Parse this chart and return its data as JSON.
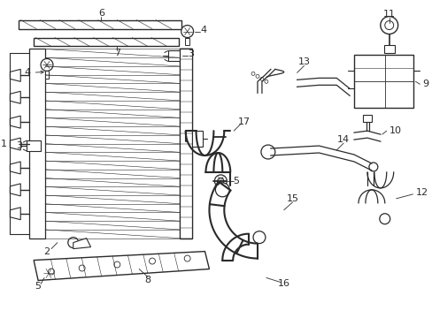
{
  "background_color": "#ffffff",
  "line_color": "#2a2a2a",
  "lw": 0.9,
  "lw_thick": 1.5,
  "fig_width": 4.89,
  "fig_height": 3.6,
  "dpi": 100
}
